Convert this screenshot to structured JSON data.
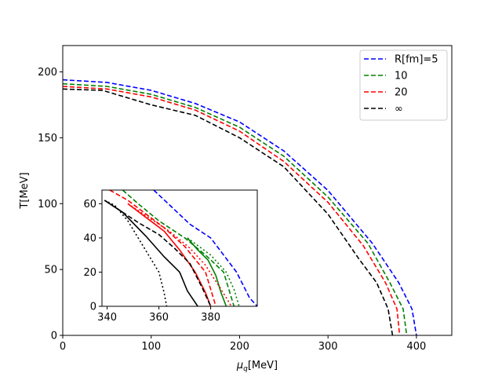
{
  "chart_data": [
    {
      "type": "line",
      "xlabel_sym": "μ",
      "xlabel_sub": "q",
      "xlabel_unit": "[MeV]",
      "ylabel": "T[MeV]",
      "xlim": [
        0,
        440
      ],
      "ylim": [
        0,
        220
      ],
      "xticks": [
        0,
        100,
        200,
        300,
        400
      ],
      "yticks": [
        0,
        50,
        100,
        150,
        200
      ],
      "legend_position": "top-right",
      "series": [
        {
          "name": "R[fm]=5",
          "color": "#0000ff",
          "style": "dashed",
          "points": [
            [
              0,
              194
            ],
            [
              50,
              192
            ],
            [
              100,
              186
            ],
            [
              150,
              176
            ],
            [
              200,
              162
            ],
            [
              250,
              140
            ],
            [
              300,
              110
            ],
            [
              350,
              70
            ],
            [
              380,
              40
            ],
            [
              395,
              20
            ],
            [
              400,
              0
            ]
          ]
        },
        {
          "name": "10",
          "color": "#008000",
          "style": "dashed",
          "points": [
            [
              0,
              191
            ],
            [
              50,
              189
            ],
            [
              100,
              183
            ],
            [
              150,
              173
            ],
            [
              200,
              158
            ],
            [
              250,
              136
            ],
            [
              300,
              105
            ],
            [
              345,
              70
            ],
            [
              370,
              40
            ],
            [
              385,
              20
            ],
            [
              389,
              0
            ]
          ]
        },
        {
          "name": "20",
          "color": "#ff0000",
          "style": "dashed",
          "points": [
            [
              0,
              189
            ],
            [
              50,
              187
            ],
            [
              100,
              181
            ],
            [
              150,
              171
            ],
            [
              200,
              155
            ],
            [
              250,
              132
            ],
            [
              300,
              101
            ],
            [
              340,
              68
            ],
            [
              365,
              40
            ],
            [
              378,
              20
            ],
            [
              381,
              0
            ]
          ]
        },
        {
          "name": "∞",
          "color": "#000000",
          "style": "dashed",
          "points": [
            [
              0,
              187
            ],
            [
              45,
              186
            ],
            [
              100,
              175
            ],
            [
              150,
              167
            ],
            [
              200,
              150
            ],
            [
              250,
              128
            ],
            [
              300,
              92
            ],
            [
              335,
              58
            ],
            [
              355,
              40
            ],
            [
              368,
              20
            ],
            [
              373,
              0
            ]
          ]
        }
      ]
    },
    {
      "type": "line",
      "role": "inset",
      "xlim": [
        338,
        398
      ],
      "ylim": [
        0,
        68
      ],
      "xticks": [
        340,
        360,
        380
      ],
      "yticks": [
        0,
        20,
        40,
        60
      ],
      "series": [
        {
          "name": "R[fm]=5 dashed",
          "color": "#0000ff",
          "style": "dashed",
          "points": [
            [
              358,
              68
            ],
            [
              365,
              58
            ],
            [
              372,
              48
            ],
            [
              380,
              40
            ],
            [
              390,
              20
            ],
            [
              395,
              5
            ],
            [
              398,
              0
            ]
          ]
        },
        {
          "name": "10 dashed",
          "color": "#008000",
          "style": "dashed",
          "points": [
            [
              346,
              68
            ],
            [
              352,
              60
            ],
            [
              360,
              50
            ],
            [
              370,
              40
            ],
            [
              378,
              30
            ],
            [
              385,
              20
            ],
            [
              389,
              0
            ]
          ]
        },
        {
          "name": "10 solid",
          "color": "#008000",
          "style": "solid",
          "points": [
            [
              371,
              40
            ],
            [
              375,
              33
            ],
            [
              379,
              27
            ],
            [
              382,
              18
            ],
            [
              384,
              8
            ],
            [
              386,
              0
            ]
          ]
        },
        {
          "name": "10 dotted",
          "color": "#008000",
          "style": "dotted",
          "points": [
            [
              371,
              40
            ],
            [
              380,
              30
            ],
            [
              386,
              20
            ],
            [
              389,
              10
            ],
            [
              391,
              0
            ]
          ]
        },
        {
          "name": "20 dashed",
          "color": "#ff0000",
          "style": "dashed",
          "points": [
            [
              341,
              68
            ],
            [
              348,
              62
            ],
            [
              355,
              54
            ],
            [
              362,
              46
            ],
            [
              370,
              35
            ],
            [
              378,
              20
            ],
            [
              382,
              0
            ]
          ]
        },
        {
          "name": "20 solid",
          "color": "#ff0000",
          "style": "solid",
          "points": [
            [
              348,
              60
            ],
            [
              355,
              52
            ],
            [
              362,
              44
            ],
            [
              368,
              33
            ],
            [
              374,
              20
            ],
            [
              378,
              8
            ],
            [
              380,
              0
            ]
          ]
        },
        {
          "name": "20 dotted",
          "color": "#ff0000",
          "style": "dotted",
          "points": [
            [
              348,
              60
            ],
            [
              356,
              52
            ],
            [
              364,
              44
            ],
            [
              372,
              34
            ],
            [
              378,
              24
            ],
            [
              384,
              10
            ],
            [
              388,
              0
            ]
          ]
        },
        {
          "name": "∞ dashed",
          "color": "#000000",
          "style": "dashed",
          "points": [
            [
              339,
              62
            ],
            [
              345,
              56
            ],
            [
              352,
              49
            ],
            [
              360,
              42
            ],
            [
              366,
              34
            ],
            [
              372,
              25
            ],
            [
              377,
              10
            ],
            [
              380,
              0
            ]
          ]
        },
        {
          "name": "∞ solid",
          "color": "#000000",
          "style": "solid",
          "points": [
            [
              339,
              62
            ],
            [
              346,
              55
            ],
            [
              355,
              41
            ],
            [
              362,
              29
            ],
            [
              368,
              20
            ],
            [
              371,
              9
            ],
            [
              375,
              0
            ]
          ]
        },
        {
          "name": "∞ dotted",
          "color": "#000000",
          "style": "dotted",
          "points": [
            [
              339,
              62
            ],
            [
              343,
              59
            ],
            [
              348,
              50
            ],
            [
              352,
              40
            ],
            [
              356,
              30
            ],
            [
              360,
              20
            ],
            [
              362,
              8
            ],
            [
              363,
              0
            ]
          ]
        }
      ]
    }
  ]
}
